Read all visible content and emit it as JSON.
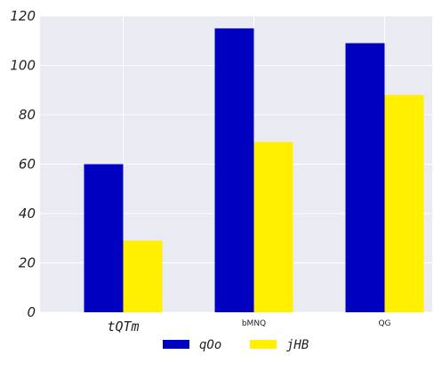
{
  "chart_data": {
    "type": "bar",
    "categories": [
      "tQTm",
      "bMNQ",
      "QG"
    ],
    "series": [
      {
        "name": "qOo",
        "values": [
          60,
          115,
          109
        ],
        "color": "#0000c0"
      },
      {
        "name": "jHB",
        "values": [
          29,
          69,
          88
        ],
        "color": "#fff000"
      }
    ],
    "ylim": [
      0,
      120
    ],
    "yticks": [
      0,
      20,
      40,
      60,
      80,
      100,
      120
    ],
    "grid": true,
    "background": "#eaeaf2",
    "legend_position": "bottom-center",
    "title": "",
    "xlabel": "",
    "ylabel": ""
  }
}
